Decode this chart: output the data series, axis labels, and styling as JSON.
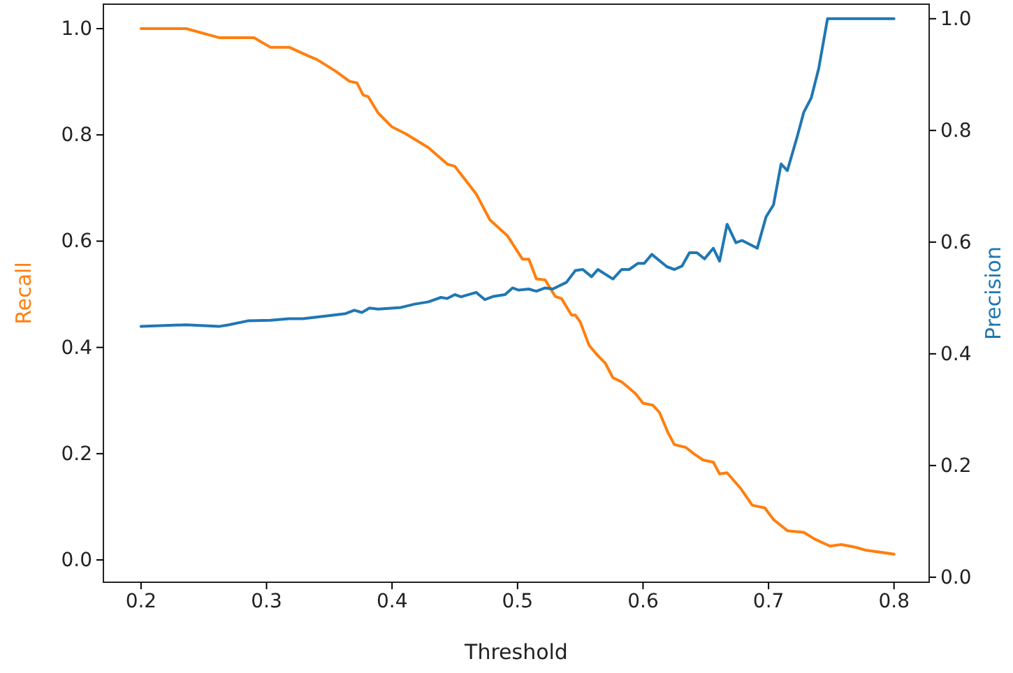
{
  "chart_data": {
    "type": "line",
    "xlabel": "Threshold",
    "ylabel": "Recall",
    "y2label": "Precision",
    "xlim": [
      0.17,
      0.828
    ],
    "xticks": [
      {
        "value": 0.2,
        "label": "0.2"
      },
      {
        "value": 0.3,
        "label": "0.3"
      },
      {
        "value": 0.4,
        "label": "0.4"
      },
      {
        "value": 0.5,
        "label": "0.5"
      },
      {
        "value": 0.6,
        "label": "0.6"
      },
      {
        "value": 0.7,
        "label": "0.7"
      },
      {
        "value": 0.8,
        "label": "0.8"
      }
    ],
    "ylim": [
      -0.042,
      1.046
    ],
    "yticks": [
      {
        "value": 0,
        "label": "0.0"
      },
      {
        "value": 0.2,
        "label": "0.2"
      },
      {
        "value": 0.4,
        "label": "0.4"
      },
      {
        "value": 0.6,
        "label": "0.6"
      },
      {
        "value": 0.8,
        "label": "0.8"
      },
      {
        "value": 1,
        "label": "1.0"
      }
    ],
    "y2lim": [
      -0.009,
      1.026
    ],
    "y2ticks": [
      {
        "value": 0,
        "label": "0.0"
      },
      {
        "value": 0.2,
        "label": "0.2"
      },
      {
        "value": 0.4,
        "label": "0.4"
      },
      {
        "value": 0.6,
        "label": "0.6"
      },
      {
        "value": 0.8,
        "label": "0.8"
      },
      {
        "value": 1,
        "label": "1.0"
      }
    ],
    "grid": false,
    "marker": "none",
    "line_style": "solid",
    "series": [
      {
        "color": "#ff7f0e",
        "x": [
          0.2,
          0.236,
          0.262,
          0.29,
          0.303,
          0.318,
          0.333,
          0.34,
          0.355,
          0.366,
          0.372,
          0.377,
          0.381,
          0.389,
          0.4,
          0.411,
          0.429,
          0.444,
          0.45,
          0.467,
          0.478,
          0.492,
          0.504,
          0.509,
          0.515,
          0.522,
          0.53,
          0.535,
          0.543,
          0.546,
          0.55,
          0.557,
          0.563,
          0.57,
          0.576,
          0.583,
          0.594,
          0.6,
          0.608,
          0.613,
          0.62,
          0.625,
          0.634,
          0.641,
          0.648,
          0.656,
          0.661,
          0.667,
          0.678,
          0.687,
          0.697,
          0.704,
          0.715,
          0.728,
          0.737,
          0.749,
          0.758,
          0.769,
          0.778,
          0.8
        ],
        "values": [
          1.0,
          1.0,
          0.983,
          0.983,
          0.965,
          0.965,
          0.949,
          0.942,
          0.92,
          0.901,
          0.898,
          0.875,
          0.872,
          0.841,
          0.815,
          0.802,
          0.776,
          0.745,
          0.741,
          0.689,
          0.64,
          0.61,
          0.566,
          0.566,
          0.529,
          0.527,
          0.496,
          0.492,
          0.461,
          0.461,
          0.448,
          0.404,
          0.387,
          0.37,
          0.343,
          0.335,
          0.313,
          0.295,
          0.291,
          0.278,
          0.239,
          0.217,
          0.212,
          0.199,
          0.188,
          0.184,
          0.162,
          0.164,
          0.134,
          0.103,
          0.098,
          0.076,
          0.055,
          0.052,
          0.039,
          0.026,
          0.029,
          0.024,
          0.018,
          0.011
        ]
      },
      {
        "color": "#1f77b4",
        "axis": "y2",
        "x": [
          0.2,
          0.236,
          0.262,
          0.27,
          0.285,
          0.303,
          0.318,
          0.329,
          0.348,
          0.363,
          0.37,
          0.376,
          0.382,
          0.389,
          0.407,
          0.418,
          0.429,
          0.439,
          0.444,
          0.45,
          0.455,
          0.467,
          0.474,
          0.481,
          0.49,
          0.496,
          0.501,
          0.509,
          0.515,
          0.522,
          0.528,
          0.539,
          0.546,
          0.552,
          0.559,
          0.564,
          0.576,
          0.583,
          0.589,
          0.596,
          0.601,
          0.607,
          0.619,
          0.625,
          0.631,
          0.637,
          0.643,
          0.649,
          0.656,
          0.661,
          0.667,
          0.674,
          0.679,
          0.691,
          0.698,
          0.704,
          0.71,
          0.715,
          0.723,
          0.728,
          0.734,
          0.74,
          0.747,
          0.8
        ],
        "values": [
          0.449,
          0.452,
          0.449,
          0.452,
          0.459,
          0.46,
          0.463,
          0.463,
          0.468,
          0.472,
          0.478,
          0.474,
          0.482,
          0.48,
          0.483,
          0.489,
          0.493,
          0.501,
          0.499,
          0.506,
          0.502,
          0.51,
          0.497,
          0.503,
          0.506,
          0.518,
          0.514,
          0.516,
          0.512,
          0.518,
          0.516,
          0.528,
          0.549,
          0.551,
          0.538,
          0.551,
          0.534,
          0.551,
          0.551,
          0.562,
          0.562,
          0.578,
          0.556,
          0.551,
          0.557,
          0.581,
          0.581,
          0.57,
          0.589,
          0.566,
          0.632,
          0.599,
          0.603,
          0.589,
          0.645,
          0.667,
          0.74,
          0.728,
          0.79,
          0.832,
          0.858,
          0.911,
          1.0,
          1.0
        ]
      }
    ]
  }
}
